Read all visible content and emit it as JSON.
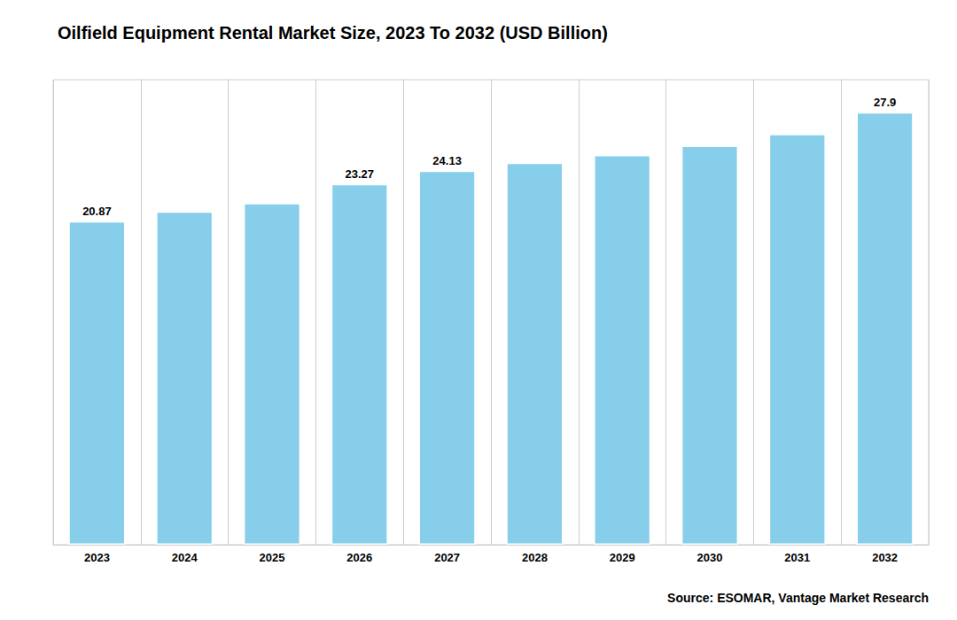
{
  "chart_data": {
    "type": "bar",
    "title": "Oilfield Equipment Rental Market Size, 2023 To 2032 (USD Billion)",
    "categories": [
      "2023",
      "2024",
      "2025",
      "2026",
      "2027",
      "2028",
      "2029",
      "2030",
      "2031",
      "2032"
    ],
    "values": [
      20.87,
      21.5,
      22.05,
      23.27,
      24.13,
      24.65,
      25.15,
      25.75,
      26.5,
      27.9
    ],
    "value_labels": [
      "20.87",
      null,
      null,
      "23.27",
      "24.13",
      null,
      null,
      null,
      null,
      "27.9"
    ],
    "data_labels": true,
    "color": "#87CEEB",
    "ylim": [
      0,
      30
    ],
    "tick_labels": "x",
    "grid": true,
    "annotations": [
      "Source: ESOMAR, Vantage Market Research"
    ]
  }
}
